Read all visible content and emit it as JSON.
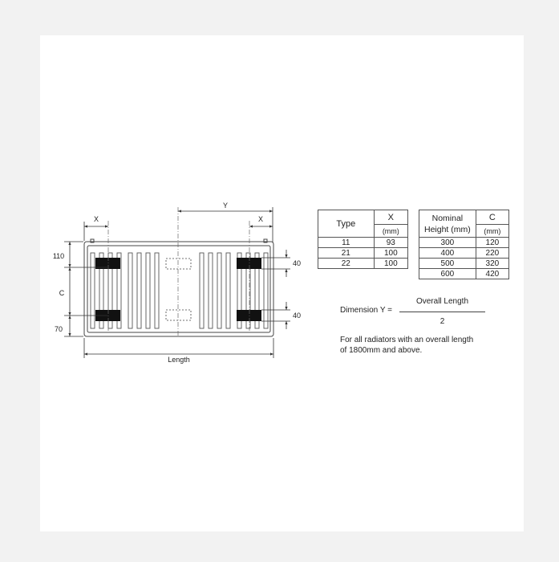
{
  "drawing": {
    "labels": {
      "x_left": "X",
      "x_right": "X",
      "y": "Y",
      "dim_110": "110",
      "dim_c": "C",
      "dim_70": "70",
      "dim_40_top": "40",
      "dim_40_bottom": "40",
      "length": "Length"
    }
  },
  "type_table": {
    "header_type": "Type",
    "header_x": "X",
    "header_unit": "(mm)",
    "rows": [
      {
        "type": "11",
        "x": "93"
      },
      {
        "type": "21",
        "x": "100"
      },
      {
        "type": "22",
        "x": "100"
      }
    ]
  },
  "height_table": {
    "header_nominal_line1": "Nominal",
    "header_nominal_line2": "Height (mm)",
    "header_c": "C",
    "header_unit": "(mm)",
    "rows": [
      {
        "height": "300",
        "c": "120"
      },
      {
        "height": "400",
        "c": "220"
      },
      {
        "height": "500",
        "c": "320"
      },
      {
        "height": "600",
        "c": "420"
      }
    ]
  },
  "formula": {
    "label": "Dimension Y =",
    "numerator": "Overall Length",
    "denominator": "2"
  },
  "note": {
    "line1": "For all radiators with an overall length",
    "line2": "of 1800mm and above."
  }
}
